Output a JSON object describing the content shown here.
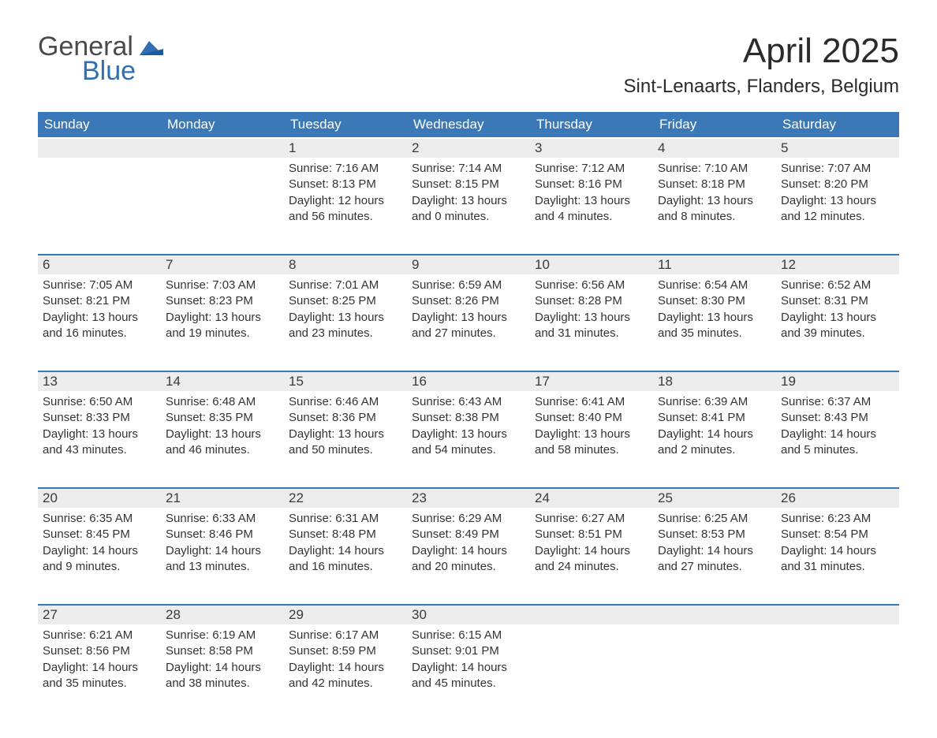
{
  "brand": {
    "word1": "General",
    "word2": "Blue"
  },
  "title": "April 2025",
  "location": "Sint-Lenaarts, Flanders, Belgium",
  "colors": {
    "header_bg": "#3a78b8",
    "header_text": "#ffffff",
    "week_divider": "#3a78b8",
    "daynum_bg": "#ececec",
    "body_text": "#333333",
    "logo_gray": "#4a4a4a",
    "logo_blue": "#2f6fb4",
    "page_bg": "#ffffff"
  },
  "weekdays": [
    "Sunday",
    "Monday",
    "Tuesday",
    "Wednesday",
    "Thursday",
    "Friday",
    "Saturday"
  ],
  "weeks": [
    [
      null,
      null,
      {
        "n": "1",
        "sr": "7:16 AM",
        "ss": "8:13 PM",
        "dl": "12 hours and 56 minutes."
      },
      {
        "n": "2",
        "sr": "7:14 AM",
        "ss": "8:15 PM",
        "dl": "13 hours and 0 minutes."
      },
      {
        "n": "3",
        "sr": "7:12 AM",
        "ss": "8:16 PM",
        "dl": "13 hours and 4 minutes."
      },
      {
        "n": "4",
        "sr": "7:10 AM",
        "ss": "8:18 PM",
        "dl": "13 hours and 8 minutes."
      },
      {
        "n": "5",
        "sr": "7:07 AM",
        "ss": "8:20 PM",
        "dl": "13 hours and 12 minutes."
      }
    ],
    [
      {
        "n": "6",
        "sr": "7:05 AM",
        "ss": "8:21 PM",
        "dl": "13 hours and 16 minutes."
      },
      {
        "n": "7",
        "sr": "7:03 AM",
        "ss": "8:23 PM",
        "dl": "13 hours and 19 minutes."
      },
      {
        "n": "8",
        "sr": "7:01 AM",
        "ss": "8:25 PM",
        "dl": "13 hours and 23 minutes."
      },
      {
        "n": "9",
        "sr": "6:59 AM",
        "ss": "8:26 PM",
        "dl": "13 hours and 27 minutes."
      },
      {
        "n": "10",
        "sr": "6:56 AM",
        "ss": "8:28 PM",
        "dl": "13 hours and 31 minutes."
      },
      {
        "n": "11",
        "sr": "6:54 AM",
        "ss": "8:30 PM",
        "dl": "13 hours and 35 minutes."
      },
      {
        "n": "12",
        "sr": "6:52 AM",
        "ss": "8:31 PM",
        "dl": "13 hours and 39 minutes."
      }
    ],
    [
      {
        "n": "13",
        "sr": "6:50 AM",
        "ss": "8:33 PM",
        "dl": "13 hours and 43 minutes."
      },
      {
        "n": "14",
        "sr": "6:48 AM",
        "ss": "8:35 PM",
        "dl": "13 hours and 46 minutes."
      },
      {
        "n": "15",
        "sr": "6:46 AM",
        "ss": "8:36 PM",
        "dl": "13 hours and 50 minutes."
      },
      {
        "n": "16",
        "sr": "6:43 AM",
        "ss": "8:38 PM",
        "dl": "13 hours and 54 minutes."
      },
      {
        "n": "17",
        "sr": "6:41 AM",
        "ss": "8:40 PM",
        "dl": "13 hours and 58 minutes."
      },
      {
        "n": "18",
        "sr": "6:39 AM",
        "ss": "8:41 PM",
        "dl": "14 hours and 2 minutes."
      },
      {
        "n": "19",
        "sr": "6:37 AM",
        "ss": "8:43 PM",
        "dl": "14 hours and 5 minutes."
      }
    ],
    [
      {
        "n": "20",
        "sr": "6:35 AM",
        "ss": "8:45 PM",
        "dl": "14 hours and 9 minutes."
      },
      {
        "n": "21",
        "sr": "6:33 AM",
        "ss": "8:46 PM",
        "dl": "14 hours and 13 minutes."
      },
      {
        "n": "22",
        "sr": "6:31 AM",
        "ss": "8:48 PM",
        "dl": "14 hours and 16 minutes."
      },
      {
        "n": "23",
        "sr": "6:29 AM",
        "ss": "8:49 PM",
        "dl": "14 hours and 20 minutes."
      },
      {
        "n": "24",
        "sr": "6:27 AM",
        "ss": "8:51 PM",
        "dl": "14 hours and 24 minutes."
      },
      {
        "n": "25",
        "sr": "6:25 AM",
        "ss": "8:53 PM",
        "dl": "14 hours and 27 minutes."
      },
      {
        "n": "26",
        "sr": "6:23 AM",
        "ss": "8:54 PM",
        "dl": "14 hours and 31 minutes."
      }
    ],
    [
      {
        "n": "27",
        "sr": "6:21 AM",
        "ss": "8:56 PM",
        "dl": "14 hours and 35 minutes."
      },
      {
        "n": "28",
        "sr": "6:19 AM",
        "ss": "8:58 PM",
        "dl": "14 hours and 38 minutes."
      },
      {
        "n": "29",
        "sr": "6:17 AM",
        "ss": "8:59 PM",
        "dl": "14 hours and 42 minutes."
      },
      {
        "n": "30",
        "sr": "6:15 AM",
        "ss": "9:01 PM",
        "dl": "14 hours and 45 minutes."
      },
      null,
      null,
      null
    ]
  ],
  "labels": {
    "sunrise": "Sunrise: ",
    "sunset": "Sunset: ",
    "daylight": "Daylight: "
  }
}
